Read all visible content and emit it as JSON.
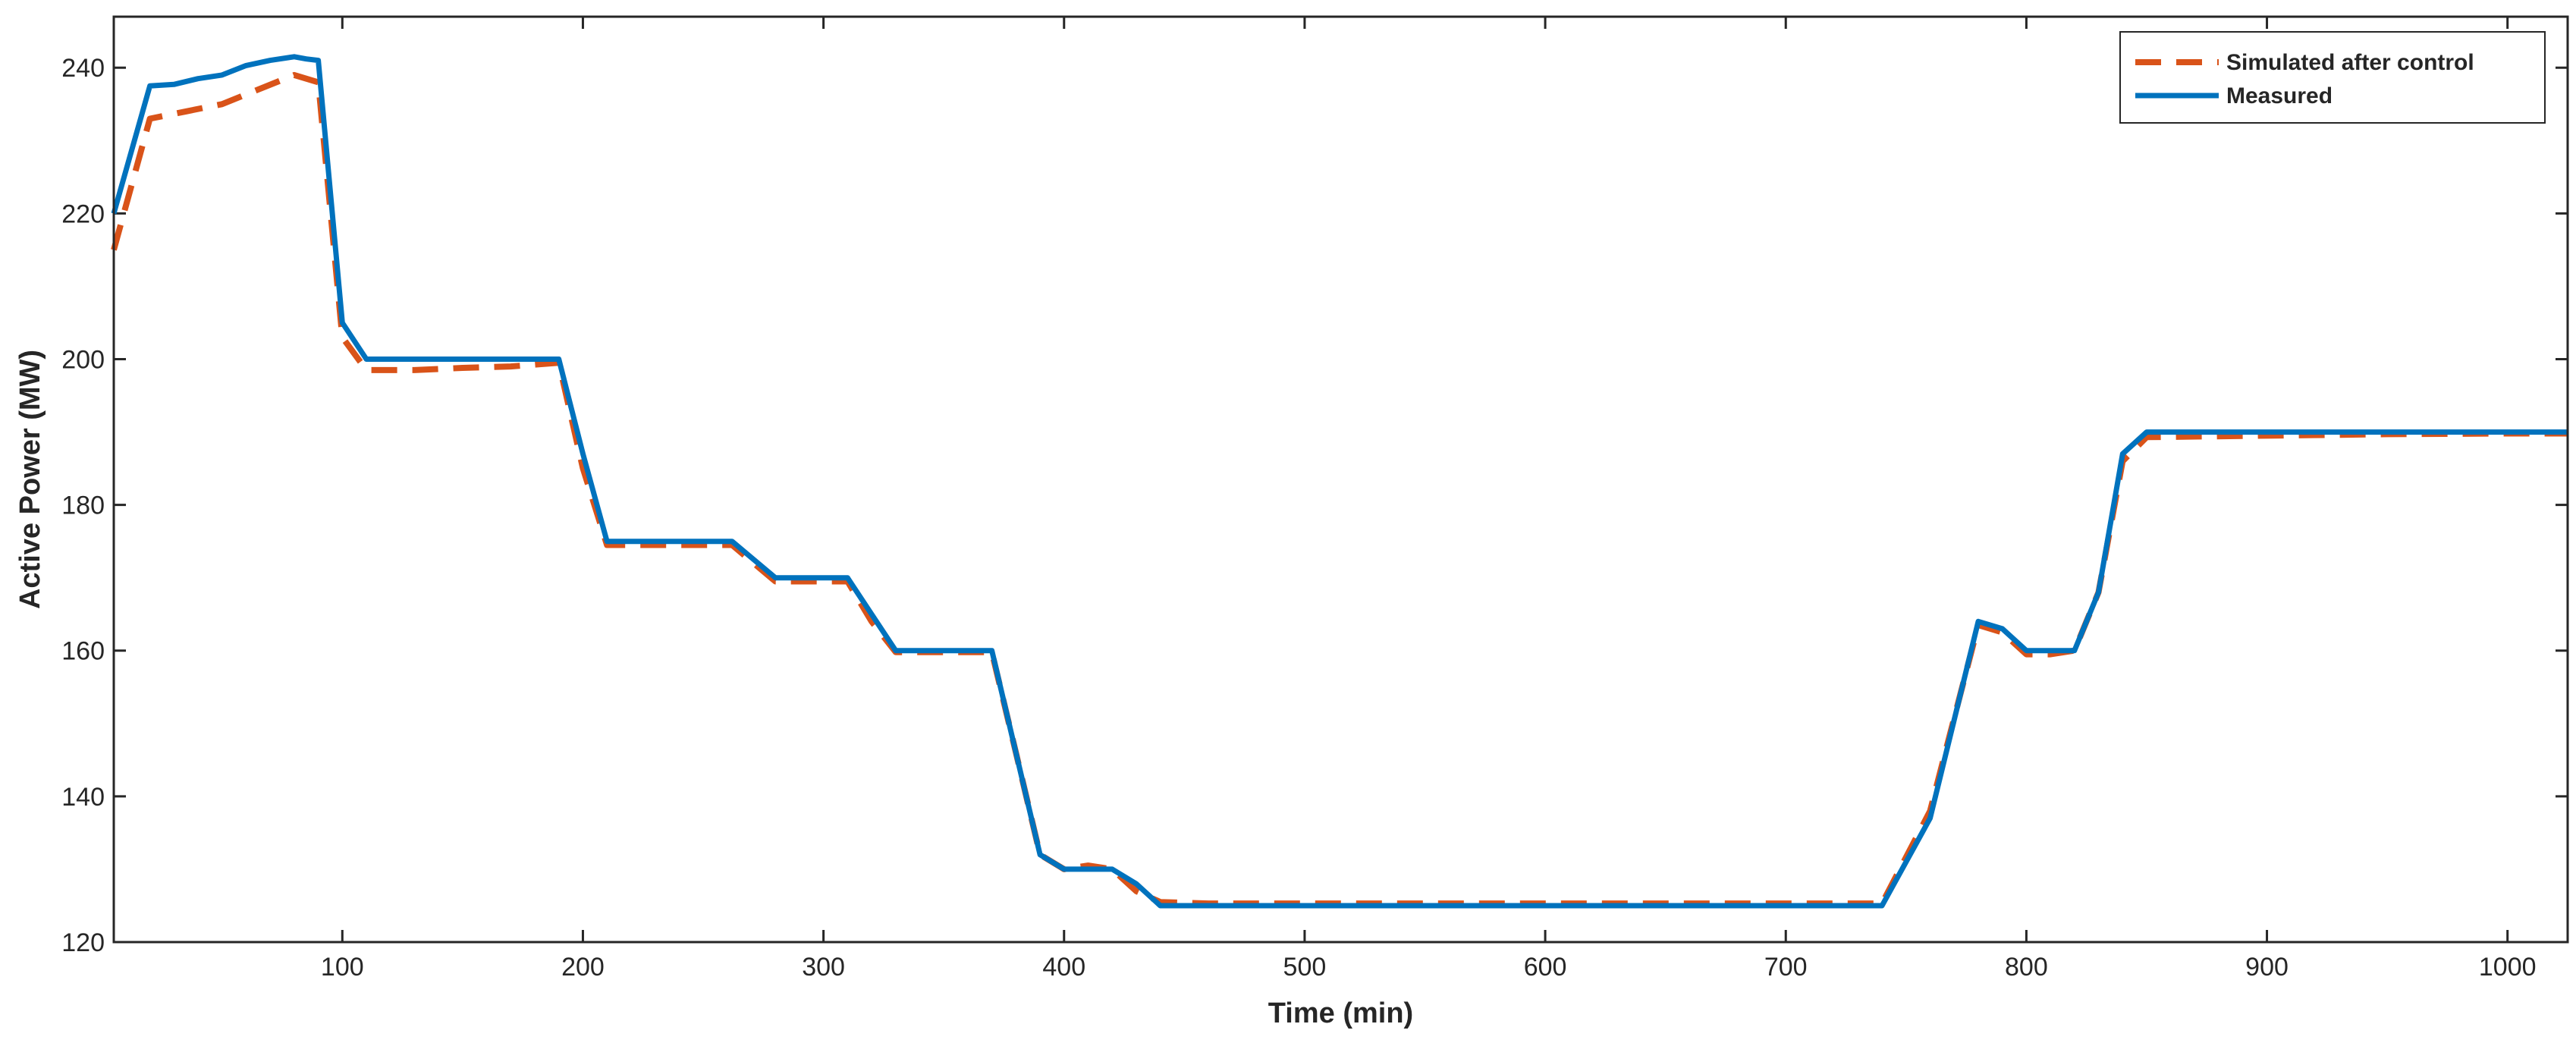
{
  "chart_data": {
    "type": "line",
    "title": "",
    "xlabel": "Time (min)",
    "ylabel": "Active Power (MW)",
    "xlim": [
      5,
      1025
    ],
    "ylim": [
      120,
      247
    ],
    "xticks": [
      100,
      200,
      300,
      400,
      500,
      600,
      700,
      800,
      900,
      1000
    ],
    "yticks": [
      120,
      140,
      160,
      180,
      200,
      220,
      240
    ],
    "grid": false,
    "legend": "top-right",
    "series": [
      {
        "name": "Simulated after control",
        "color": "#D95319",
        "style": "dashed",
        "x": [
          5,
          20,
          35,
          50,
          65,
          80,
          90,
          100,
          110,
          130,
          150,
          170,
          190,
          200,
          210,
          230,
          250,
          262,
          280,
          300,
          310,
          320,
          330,
          350,
          370,
          380,
          390,
          400,
          410,
          420,
          430,
          440,
          460,
          500,
          600,
          700,
          740,
          760,
          780,
          790,
          800,
          810,
          820,
          830,
          840,
          850,
          900,
          950,
          1000,
          1025
        ],
        "y": [
          215,
          233,
          234,
          235,
          237,
          239,
          238,
          203,
          198.5,
          198.5,
          198.8,
          199,
          199.5,
          185,
          174.5,
          174.5,
          174.5,
          174.5,
          169.5,
          169.5,
          169.5,
          164,
          159.8,
          159.8,
          159.8,
          146,
          132,
          130,
          130.5,
          130,
          127,
          125.5,
          125.3,
          125.3,
          125.3,
          125.3,
          125.3,
          138,
          163.5,
          162.5,
          159.5,
          159.5,
          160,
          168,
          186,
          189.3,
          189.5,
          189.7,
          189.8,
          189.8
        ]
      },
      {
        "name": "Measured",
        "color": "#0072BD",
        "style": "solid",
        "x": [
          5,
          20,
          30,
          40,
          50,
          60,
          70,
          80,
          85,
          90,
          100,
          110,
          130,
          150,
          170,
          190,
          200,
          210,
          230,
          250,
          262,
          280,
          300,
          310,
          320,
          330,
          350,
          370,
          380,
          390,
          400,
          410,
          420,
          430,
          440,
          460,
          500,
          600,
          700,
          740,
          760,
          780,
          790,
          800,
          810,
          820,
          830,
          840,
          850,
          900,
          950,
          1000,
          1025
        ],
        "y": [
          220,
          237.5,
          237.7,
          238.5,
          239,
          240.3,
          241,
          241.5,
          241.2,
          241,
          205,
          200,
          200,
          200,
          200,
          200,
          187,
          175,
          175,
          175,
          175,
          170,
          170,
          170,
          165,
          160,
          160,
          160,
          146,
          132,
          130,
          130,
          130,
          128,
          125,
          125,
          125,
          125,
          125,
          125,
          137,
          164,
          163,
          160,
          160,
          160,
          168,
          187,
          190,
          190,
          190,
          190,
          190
        ]
      }
    ]
  }
}
